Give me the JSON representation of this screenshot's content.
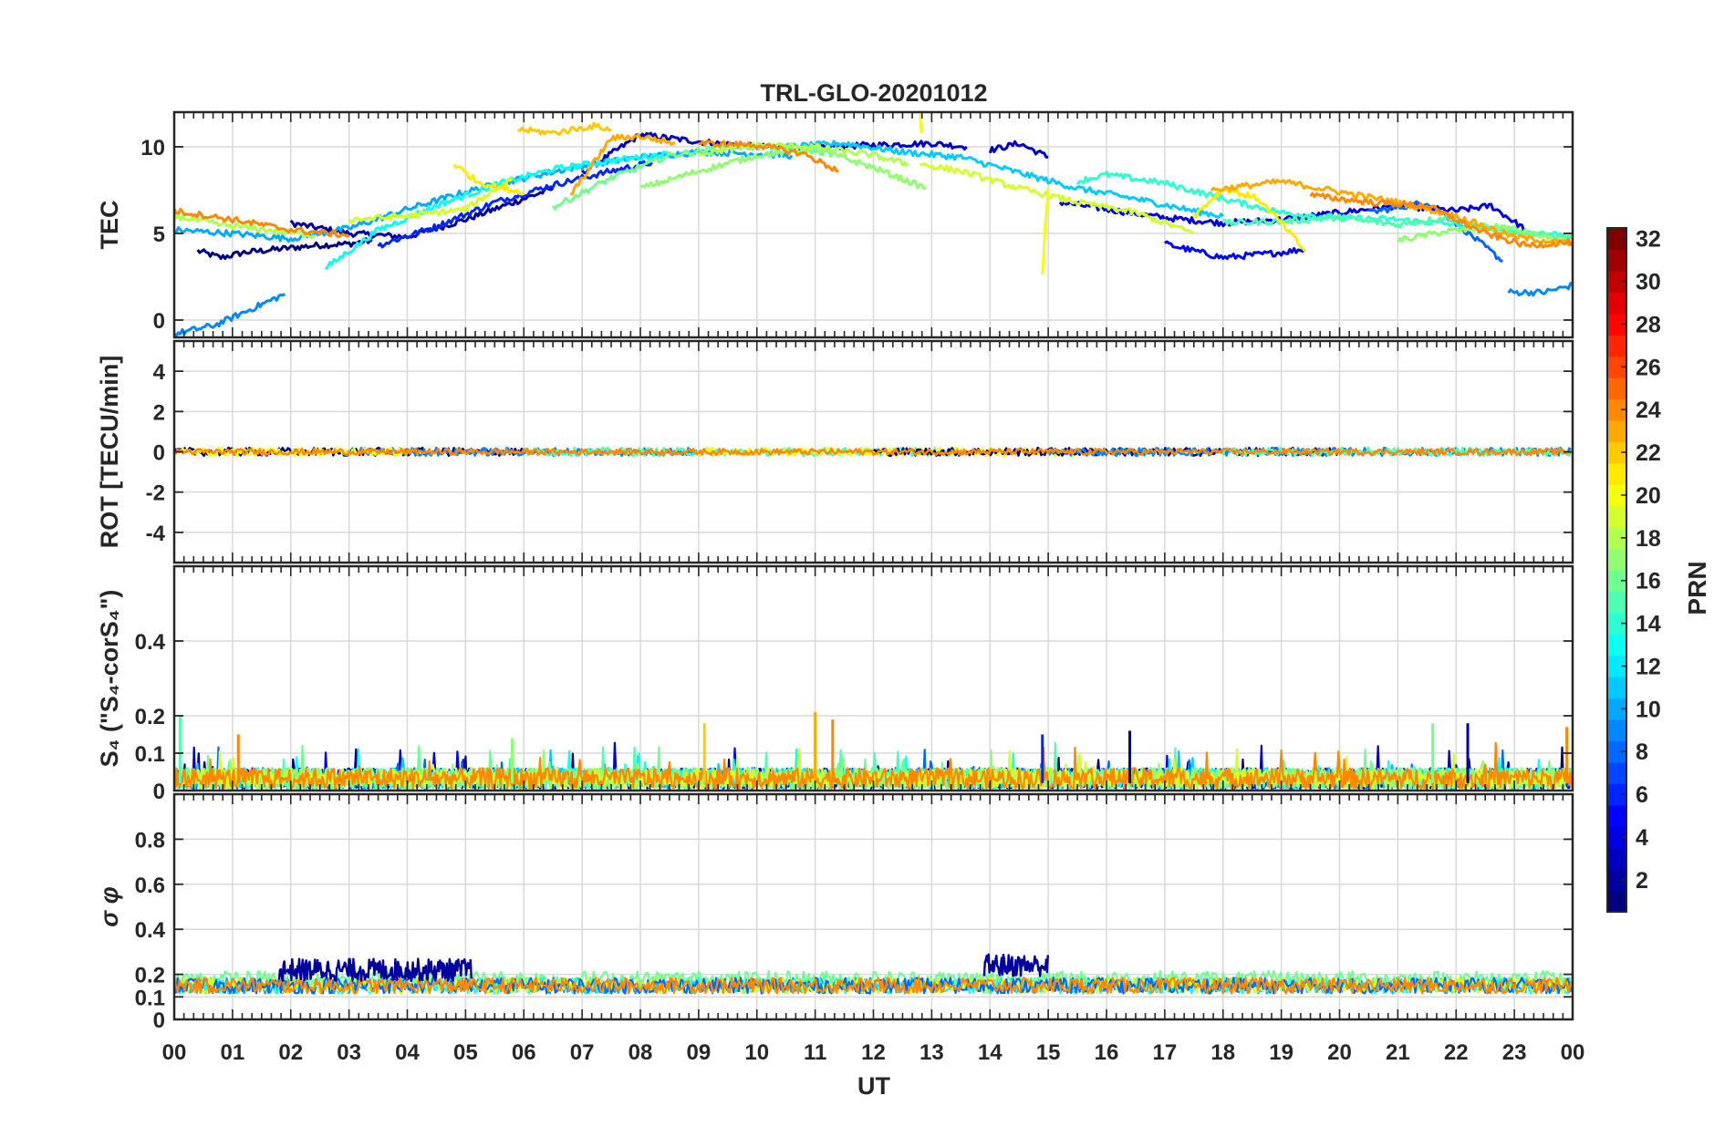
{
  "title": "TRL-GLO-20201012",
  "chart_data": [
    {
      "panel": "tec",
      "type": "line",
      "ylabel": "TEC",
      "ylim": [
        -1,
        12
      ],
      "yticks": [
        0,
        5,
        10
      ],
      "ytick_labels": [
        "0",
        "5",
        "10"
      ],
      "xlim": [
        0,
        24
      ],
      "grid": true,
      "series": [
        {
          "prn": 1,
          "x": [
            0.4,
            0.8,
            1.2,
            1.8,
            2.4,
            3.0,
            3.4
          ],
          "y": [
            4.0,
            3.6,
            3.9,
            4.1,
            4.3,
            4.4,
            4.6
          ]
        },
        {
          "prn": 2,
          "x": [
            2.0,
            3.0,
            4.0,
            5.0,
            6.0,
            6.5
          ],
          "y": [
            5.6,
            5.0,
            4.8,
            5.8,
            7.0,
            7.6
          ]
        },
        {
          "prn": 3,
          "x": [
            7.0,
            8.0,
            9.0,
            10.0,
            11.0,
            12.0,
            13.0,
            13.6
          ],
          "y": [
            8.5,
            10.7,
            10.3,
            10.0,
            10.0,
            10.1,
            10.2,
            10.0
          ]
        },
        {
          "prn": 3,
          "x": [
            14.0,
            14.5,
            15.0
          ],
          "y": [
            9.8,
            10.2,
            9.4
          ]
        },
        {
          "prn": 4,
          "x": [
            15.2,
            16.0,
            17.0,
            18.0,
            19.0,
            20.0,
            21.0,
            22.0,
            22.6,
            23.2
          ],
          "y": [
            6.8,
            6.4,
            5.9,
            5.6,
            5.8,
            6.2,
            6.6,
            6.3,
            6.6,
            5.2
          ]
        },
        {
          "prn": 5,
          "x": [
            17.0,
            18.0,
            19.0,
            19.4
          ],
          "y": [
            4.4,
            3.6,
            3.9,
            4.1
          ]
        },
        {
          "prn": 6,
          "x": [
            3.5,
            4.5,
            5.5,
            6.5,
            7.5,
            8.2
          ],
          "y": [
            4.3,
            5.4,
            6.8,
            7.8,
            8.6,
            9.1
          ]
        },
        {
          "prn": 8,
          "x": [
            20.5,
            21.5,
            22.0,
            22.8
          ],
          "y": [
            6.2,
            6.8,
            5.6,
            3.4
          ]
        },
        {
          "prn": 9,
          "x": [
            0.0,
            0.7,
            1.3,
            1.9
          ],
          "y": [
            -0.8,
            -0.3,
            0.6,
            1.5
          ]
        },
        {
          "prn": 9,
          "x": [
            22.9,
            23.5,
            24.0
          ],
          "y": [
            1.6,
            1.6,
            2.0
          ]
        },
        {
          "prn": 10,
          "x": [
            0.0,
            1.0,
            2.0,
            3.0,
            4.0,
            5.0,
            6.0,
            7.0,
            8.0,
            9.0,
            10.0,
            10.6
          ],
          "y": [
            5.2,
            5.0,
            4.7,
            5.3,
            6.4,
            7.4,
            8.2,
            8.9,
            9.4,
            9.7,
            9.6,
            9.5
          ]
        },
        {
          "prn": 11,
          "x": [
            10.5,
            11.5,
            12.5,
            13.5,
            14.5,
            15.5,
            16.5,
            17.5,
            18.0
          ],
          "y": [
            10.0,
            10.2,
            9.7,
            9.4,
            8.5,
            7.6,
            7.0,
            6.3,
            6.0
          ]
        },
        {
          "prn": 13,
          "x": [
            2.6,
            3.5,
            4.5,
            5.5,
            6.5,
            7.5,
            8.5
          ],
          "y": [
            3.0,
            5.2,
            6.6,
            7.8,
            8.7,
            9.2,
            9.6
          ]
        },
        {
          "prn": 14,
          "x": [
            15.5,
            16.0,
            17.0,
            18.0,
            19.0,
            20.0,
            21.0,
            22.0,
            23.0,
            24.0
          ],
          "y": [
            8.0,
            8.4,
            7.9,
            7.0,
            6.2,
            5.9,
            5.8,
            5.5,
            5.1,
            4.9
          ]
        },
        {
          "prn": 15,
          "x": [
            18.0,
            19.0,
            20.0,
            21.0,
            21.8,
            23.0,
            24.0
          ],
          "y": [
            5.6,
            5.7,
            5.9,
            5.5,
            5.9,
            5.0,
            4.8
          ]
        },
        {
          "prn": 16,
          "x": [
            6.5,
            7.5,
            8.5,
            9.5,
            10.5,
            11.3
          ],
          "y": [
            6.5,
            8.2,
            9.5,
            10.0,
            10.0,
            9.6
          ]
        },
        {
          "prn": 17,
          "x": [
            8.0,
            9.0,
            10.0,
            11.0,
            12.0,
            12.9
          ],
          "y": [
            7.6,
            8.6,
            9.5,
            9.9,
            8.8,
            7.6
          ]
        },
        {
          "prn": 17,
          "x": [
            21.0,
            21.8,
            22.8,
            24.0
          ],
          "y": [
            4.6,
            5.1,
            5.4,
            4.4
          ]
        },
        {
          "prn": 18,
          "x": [
            0.0,
            0.8,
            1.6,
            2.4
          ],
          "y": [
            6.0,
            5.5,
            5.2,
            4.9
          ]
        },
        {
          "prn": 18,
          "x": [
            9.0,
            10.0,
            11.0,
            12.0,
            12.6
          ],
          "y": [
            9.6,
            10.1,
            10.0,
            9.5,
            9.0
          ]
        },
        {
          "prn": 19,
          "x": [
            3.0,
            4.0,
            5.0,
            5.8
          ],
          "y": [
            5.8,
            6.0,
            6.4,
            8.2
          ]
        },
        {
          "prn": 19,
          "x": [
            12.8,
            13.5,
            14.5,
            15.5,
            16.5,
            17.5
          ],
          "y": [
            9.0,
            8.6,
            7.6,
            6.8,
            6.2,
            5.0
          ]
        },
        {
          "prn": 20,
          "x": [
            12.8,
            12.82
          ],
          "y": [
            12.0,
            10.8
          ]
        },
        {
          "prn": 20,
          "x": [
            14.9,
            14.95,
            15.0
          ],
          "y": [
            2.5,
            5.5,
            7.6
          ]
        },
        {
          "prn": 21,
          "x": [
            4.8,
            5.2,
            5.6,
            6.0
          ],
          "y": [
            9.0,
            8.0,
            7.6,
            7.4
          ]
        },
        {
          "prn": 21,
          "x": [
            17.5,
            18.0,
            18.6,
            19.0,
            19.4
          ],
          "y": [
            6.0,
            7.6,
            7.0,
            5.6,
            4.0
          ]
        },
        {
          "prn": 22,
          "x": [
            5.9,
            6.5,
            7.2,
            7.5
          ],
          "y": [
            11.0,
            10.8,
            11.2,
            11.0
          ]
        },
        {
          "prn": 23,
          "x": [
            17.8,
            19.0,
            20.0,
            21.0,
            22.0,
            23.0,
            24.0
          ],
          "y": [
            7.5,
            8.0,
            7.4,
            6.8,
            6.0,
            4.8,
            4.4
          ]
        },
        {
          "prn": 23,
          "x": [
            6.8,
            7.5,
            8.0,
            8.6
          ],
          "y": [
            7.2,
            10.5,
            10.6,
            10.2
          ]
        },
        {
          "prn": 24,
          "x": [
            0.0,
            1.0,
            2.0,
            3.0
          ],
          "y": [
            6.3,
            5.8,
            5.2,
            4.9
          ]
        },
        {
          "prn": 24,
          "x": [
            9.0,
            10.0,
            10.8,
            11.4
          ],
          "y": [
            10.2,
            10.1,
            9.6,
            8.6
          ]
        },
        {
          "prn": 24,
          "x": [
            19.5,
            20.5,
            21.5,
            22.5,
            23.2,
            24.0
          ],
          "y": [
            7.2,
            6.8,
            6.6,
            5.0,
            4.3,
            4.5
          ]
        }
      ]
    },
    {
      "panel": "rot",
      "type": "line",
      "ylabel": "ROT [TECU/min]",
      "ylim": [
        -5.5,
        5.5
      ],
      "yticks": [
        -4,
        -2,
        0,
        2,
        4
      ],
      "ytick_labels": [
        "-4",
        "-2",
        "0",
        "2",
        "4"
      ],
      "xlim": [
        0,
        24
      ],
      "grid": true,
      "noise_amplitude": 0.2
    },
    {
      "panel": "s4",
      "type": "line",
      "ylabel": "S₄ (\"S₄-corS₄\")",
      "ylim": [
        0,
        0.6
      ],
      "yticks": [
        0,
        0.1,
        0.2,
        0.4
      ],
      "ytick_labels": [
        "0",
        "0.1",
        "0.2",
        "0.4"
      ],
      "xlim": [
        0,
        24
      ],
      "grid": true,
      "typical_range": [
        0.0,
        0.1
      ],
      "peak_max": 0.21
    },
    {
      "panel": "sigma_phi",
      "type": "line",
      "ylabel": "σ φ",
      "ylim": [
        0,
        1
      ],
      "yticks": [
        0,
        0.1,
        0.2,
        0.4,
        0.6,
        0.8
      ],
      "ytick_labels": [
        "0",
        "0.1",
        "0.2",
        "0.4",
        "0.6",
        "0.8"
      ],
      "xlim": [
        0,
        24
      ],
      "grid": true,
      "baseline": 0.15,
      "enhanced_intervals": [
        {
          "prn": 2,
          "x_start": 1.8,
          "x_end": 5.1,
          "level": 0.22
        },
        {
          "prn": 2,
          "x_start": 13.9,
          "x_end": 15.0,
          "level": 0.24
        }
      ]
    }
  ],
  "x_axis": {
    "label": "UT",
    "tick_labels": [
      "00",
      "01",
      "02",
      "03",
      "04",
      "05",
      "06",
      "07",
      "08",
      "09",
      "10",
      "11",
      "12",
      "13",
      "14",
      "15",
      "16",
      "17",
      "18",
      "19",
      "20",
      "21",
      "22",
      "23",
      "00"
    ]
  },
  "colorbar": {
    "label": "PRN",
    "range": [
      1,
      32
    ],
    "tick_labels": [
      "2",
      "4",
      "6",
      "8",
      "10",
      "12",
      "14",
      "16",
      "18",
      "20",
      "22",
      "24",
      "26",
      "28",
      "30",
      "32"
    ],
    "colormap": "jet"
  }
}
